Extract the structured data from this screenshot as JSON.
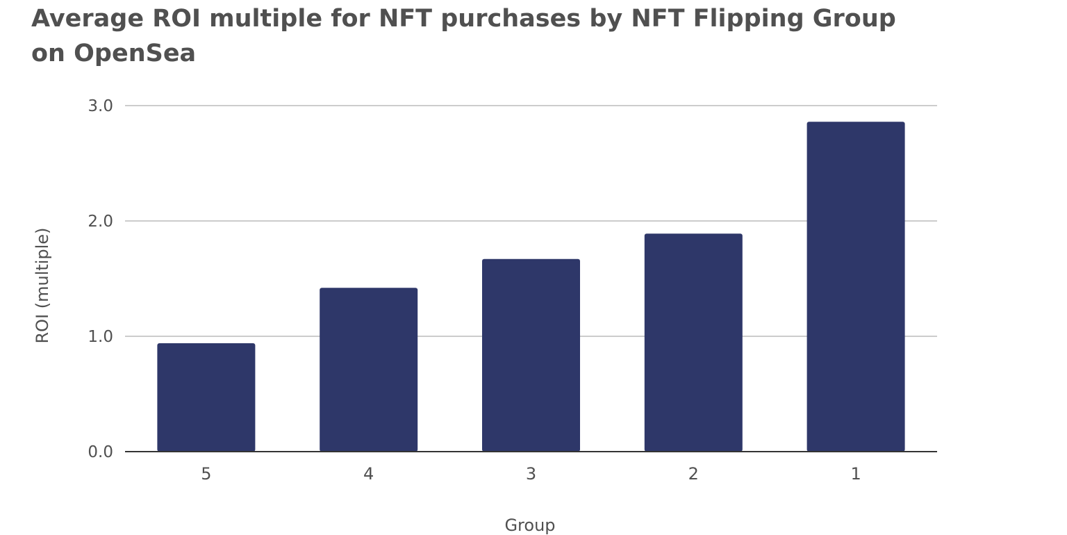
{
  "chart_data": {
    "type": "bar",
    "title": "Average ROI multiple for NFT purchases by NFT Flipping Group on OpenSea",
    "title_lines": [
      "Average ROI multiple for NFT purchases by NFT Flipping Group",
      "on OpenSea"
    ],
    "xlabel": "Group",
    "ylabel": "ROI (multiple)",
    "categories": [
      "5",
      "4",
      "3",
      "2",
      "1"
    ],
    "values": [
      0.94,
      1.42,
      1.67,
      1.89,
      2.86
    ],
    "ylim": [
      0,
      3.0
    ],
    "yticks": [
      "0.0",
      "1.0",
      "2.0",
      "3.0"
    ],
    "grid": true,
    "legend": "none",
    "bar_color": "#2e3769",
    "grid_color": "#cccccc",
    "axis_color": "#333333"
  }
}
